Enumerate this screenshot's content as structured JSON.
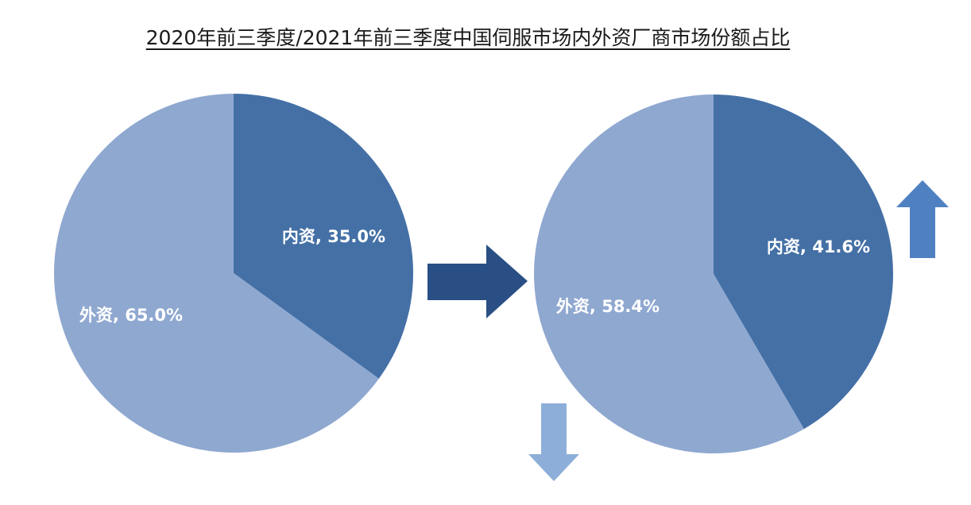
{
  "title": "2020年前三季度/2021年前三季度中国伺服市场内外资厂商市场份额占比",
  "colors": {
    "domestic": "#4470a6",
    "foreign": "#8fa8d0",
    "arrow_right": "#2a4f85",
    "arrow_up": "#4f81c2",
    "arrow_down": "#8daed8"
  },
  "chart_data": [
    {
      "type": "pie",
      "title": "",
      "series": [
        {
          "name": "内资",
          "value": 35.0,
          "label": "内资, 35.0%"
        },
        {
          "name": "外资",
          "value": 65.0,
          "label": "外资, 65.0%"
        }
      ]
    },
    {
      "type": "pie",
      "title": "",
      "series": [
        {
          "name": "内资",
          "value": 41.6,
          "label": "内资, 41.6%"
        },
        {
          "name": "外资",
          "value": 58.4,
          "label": "外资, 58.4%"
        }
      ]
    }
  ],
  "indicators": {
    "transition": "right-arrow-icon",
    "domestic_trend": "up-arrow-icon",
    "foreign_trend": "down-arrow-icon"
  }
}
